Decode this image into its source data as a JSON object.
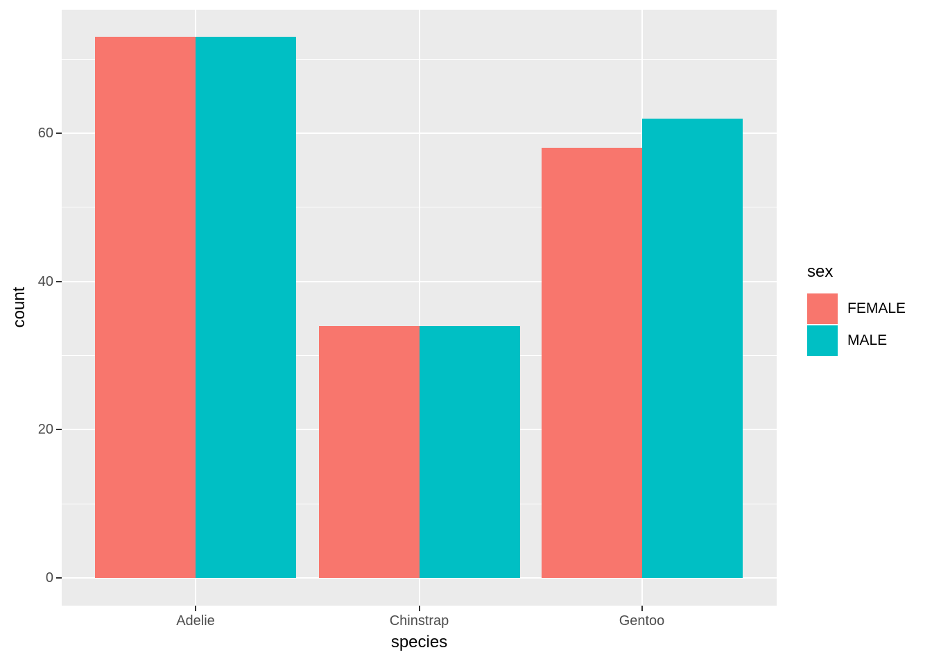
{
  "chart_data": {
    "type": "bar",
    "title": "",
    "categories": [
      "Adelie",
      "Chinstrap",
      "Gentoo"
    ],
    "series": [
      {
        "name": "FEMALE",
        "color": "#F8766D",
        "values": [
          73,
          34,
          58
        ]
      },
      {
        "name": "MALE",
        "color": "#00BFC4",
        "values": [
          73,
          34,
          62
        ]
      }
    ],
    "xlabel": "species",
    "ylabel": "count",
    "ylim": [
      0,
      76.7
    ],
    "y_ticks": [
      0,
      20,
      40,
      60
    ],
    "y_minor_ticks": [
      10,
      30,
      50,
      70
    ],
    "legend": {
      "title": "sex",
      "position": "right",
      "entries": [
        "FEMALE",
        "MALE"
      ]
    },
    "grid": true,
    "colors": {
      "panel_background": "#EBEBEB",
      "gridline": "#FFFFFF",
      "tick_mark": "#333333",
      "tick_text": "#4D4D4D",
      "axis_title_text": "#000000"
    }
  }
}
